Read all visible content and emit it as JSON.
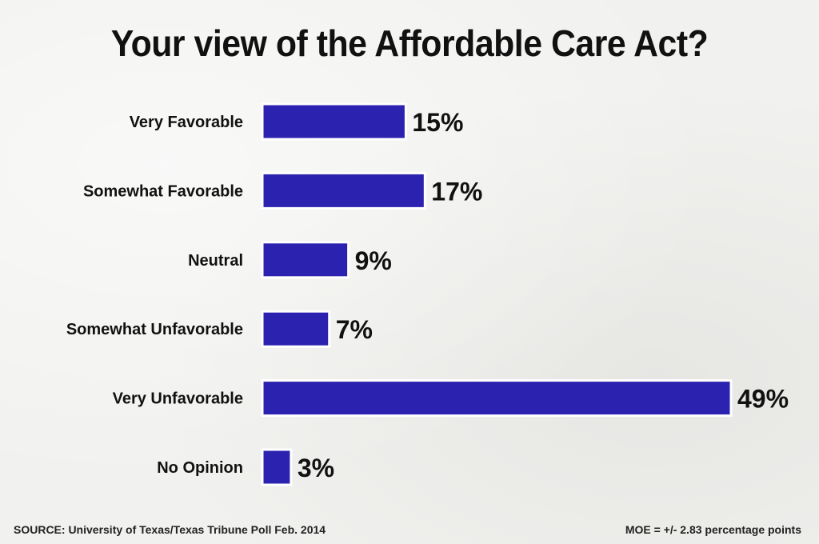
{
  "chart_data": {
    "type": "bar",
    "orientation": "horizontal",
    "title": "Your view of the Affordable Care Act?",
    "categories": [
      "Very Favorable",
      "Somewhat Favorable",
      "Neutral",
      "Somewhat Unfavorable",
      "Very Unfavorable",
      "No Opinion"
    ],
    "values": [
      15,
      17,
      9,
      7,
      49,
      3
    ],
    "value_labels": [
      "15%",
      "17%",
      "9%",
      "7%",
      "49%",
      "3%"
    ],
    "unit": "%",
    "xlim": [
      0,
      49
    ],
    "grid": false,
    "bar_color": "#2b22b0",
    "bar_border_color": "#ffffff"
  },
  "footer": {
    "source": "SOURCE: University of Texas/Texas Tribune Poll Feb. 2014",
    "moe": "MOE = +/- 2.83 percentage points"
  }
}
